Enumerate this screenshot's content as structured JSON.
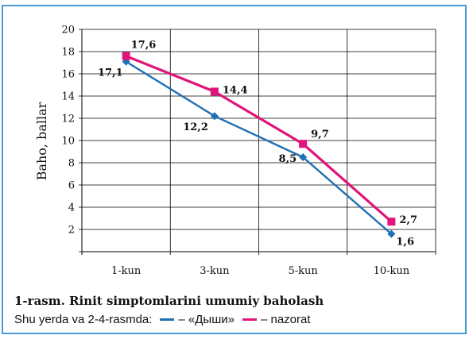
{
  "chart_data": {
    "type": "line",
    "title": "1-rasm. Rinit simptomlarini umumiy baholash",
    "ylabel": "Baho, ballar",
    "xlabel": "",
    "categories": [
      "1-kun",
      "3-kun",
      "5-kun",
      "10-kun"
    ],
    "yticks": [
      "20",
      "18",
      "16",
      "14",
      "12",
      "10",
      "8",
      "6",
      "4",
      "2"
    ],
    "ylim": [
      0,
      20
    ],
    "grid": true,
    "legend_position": "bottom",
    "series": [
      {
        "name": "«Дыши»",
        "legend_label": "– «Дыши»",
        "color": "#1f6fb5",
        "marker": "diamond",
        "values": [
          17.1,
          12.2,
          8.5,
          1.6
        ],
        "labels": [
          "17,1",
          "12,2",
          "8,5",
          "1,6"
        ]
      },
      {
        "name": "nazorat",
        "legend_label": "– nazorat",
        "color": "#e0147a",
        "marker": "square",
        "values": [
          17.6,
          14.4,
          9.7,
          2.7
        ],
        "labels": [
          "17,6",
          "14,4",
          "9,7",
          "2,7"
        ]
      }
    ]
  },
  "legend": {
    "prefix": "Shu yerda va 2-4-rasmda:"
  }
}
